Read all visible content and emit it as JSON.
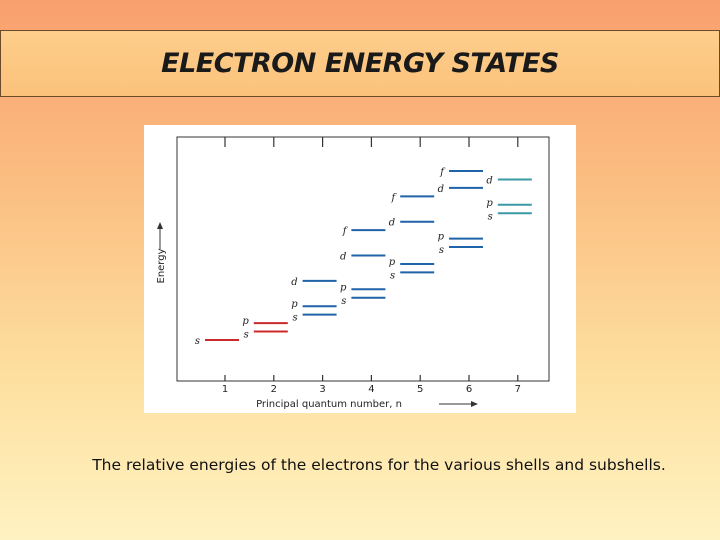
{
  "slide": {
    "title": "ELECTRON ENERGY STATES",
    "caption": "The relative energies of the electrons for the various shells and subshells."
  },
  "diagram": {
    "y_axis_label": "Energy",
    "x_axis_label": "Principal quantum number, n",
    "x_ticks": [
      "1",
      "2",
      "3",
      "4",
      "5",
      "6",
      "7"
    ],
    "colors": {
      "red": "#cc2a2a",
      "blue": "#1f63a8",
      "teal": "#3a9aa6"
    },
    "levels": [
      {
        "n": 1,
        "label": "s",
        "level": 1,
        "color": "red"
      },
      {
        "n": 2,
        "label": "s",
        "level": 2,
        "color": "red"
      },
      {
        "n": 2,
        "label": "p",
        "level": 3,
        "color": "red"
      },
      {
        "n": 3,
        "label": "s",
        "level": 4,
        "color": "blue"
      },
      {
        "n": 3,
        "label": "p",
        "level": 5,
        "color": "blue"
      },
      {
        "n": 3,
        "label": "d",
        "level": 8,
        "color": "blue"
      },
      {
        "n": 4,
        "label": "s",
        "level": 6,
        "color": "blue"
      },
      {
        "n": 4,
        "label": "p",
        "level": 7,
        "color": "blue"
      },
      {
        "n": 4,
        "label": "d",
        "level": 11,
        "color": "blue"
      },
      {
        "n": 4,
        "label": "f",
        "level": 14,
        "color": "blue"
      },
      {
        "n": 5,
        "label": "s",
        "level": 9,
        "color": "blue"
      },
      {
        "n": 5,
        "label": "p",
        "level": 10,
        "color": "blue"
      },
      {
        "n": 5,
        "label": "d",
        "level": 15,
        "color": "blue"
      },
      {
        "n": 5,
        "label": "f",
        "level": 18,
        "color": "blue"
      },
      {
        "n": 6,
        "label": "s",
        "level": 12,
        "color": "blue"
      },
      {
        "n": 6,
        "label": "p",
        "level": 13,
        "color": "blue"
      },
      {
        "n": 6,
        "label": "d",
        "level": 19,
        "color": "blue"
      },
      {
        "n": 6,
        "label": "f",
        "level": 21,
        "color": "blue"
      },
      {
        "n": 7,
        "label": "s",
        "level": 16,
        "color": "teal"
      },
      {
        "n": 7,
        "label": "p",
        "level": 17,
        "color": "teal"
      },
      {
        "n": 7,
        "label": "d",
        "level": 20,
        "color": "teal"
      }
    ]
  }
}
